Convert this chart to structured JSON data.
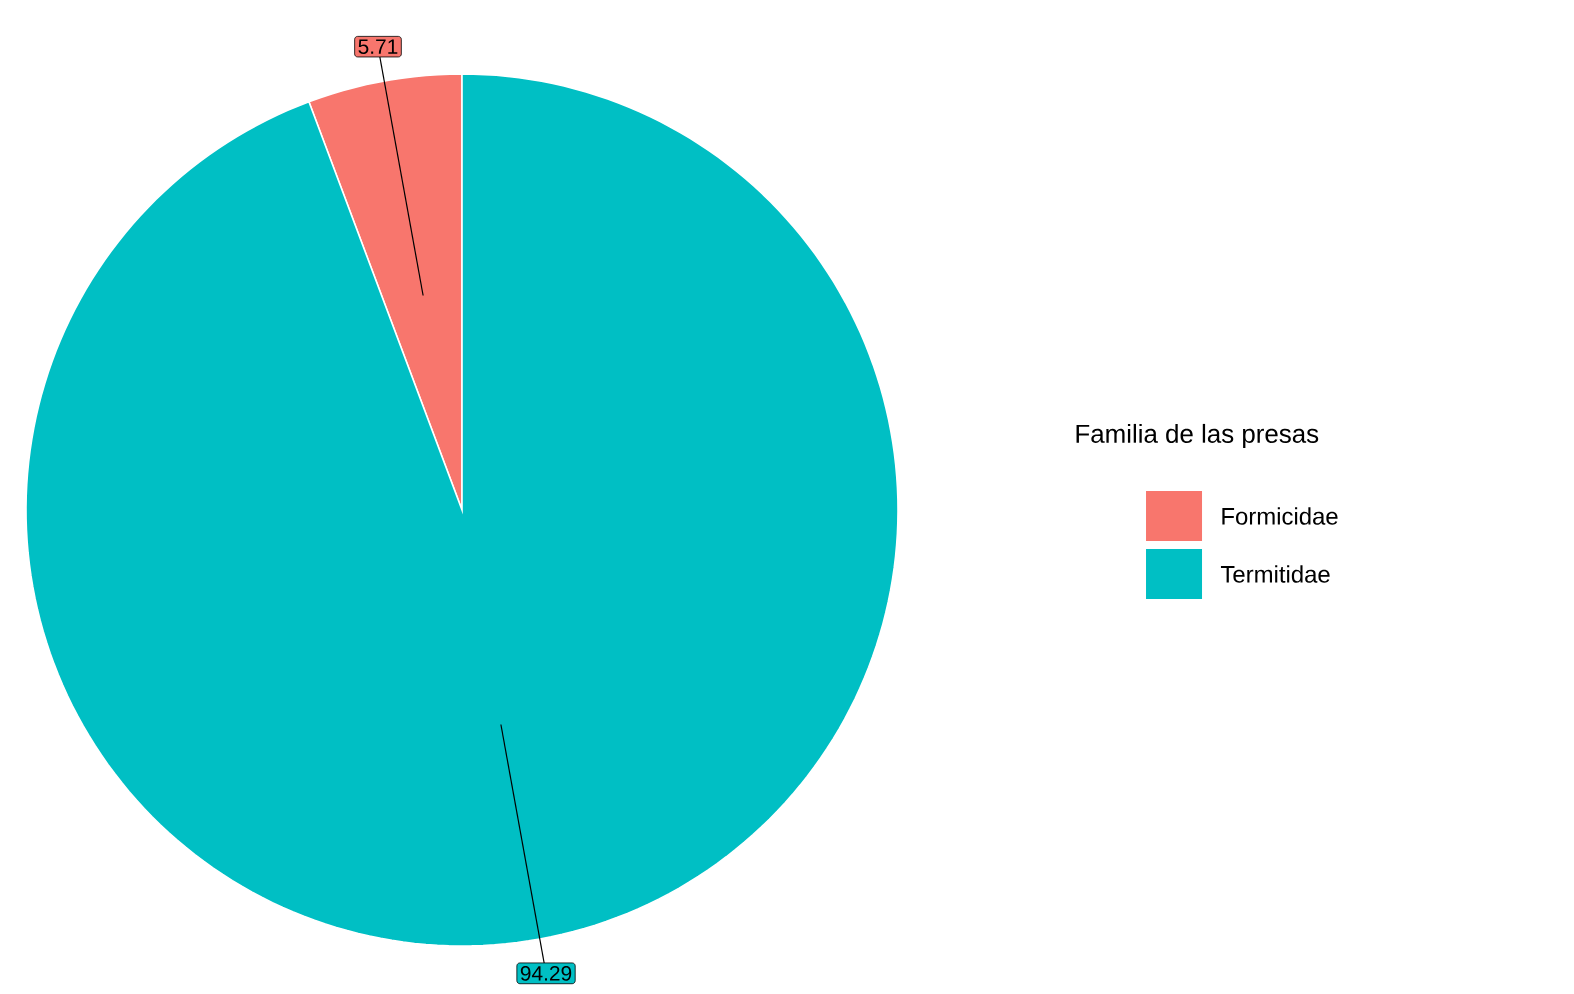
{
  "chart_data": {
    "type": "pie",
    "legend_title": "Familia de las presas",
    "categories": [
      "Formicidae",
      "Termitidae"
    ],
    "values": [
      5.71,
      94.29
    ],
    "colors": [
      "#f8766d",
      "#00bfc4"
    ],
    "data_labels": true,
    "legend": "right"
  }
}
